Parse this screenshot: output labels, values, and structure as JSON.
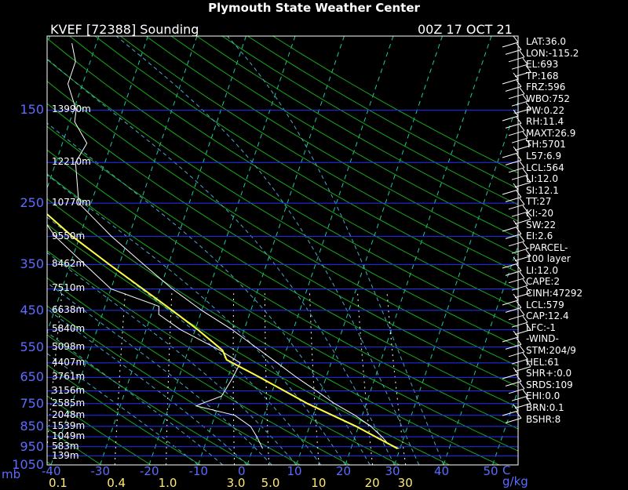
{
  "title": "Plymouth State Weather Center",
  "station_label": "KVEF [72388] Sounding",
  "time_label": "00Z 17 OCT 21",
  "mb_unit": "mb",
  "units_label": "C  g/kg",
  "colors": {
    "isobar": "#2030ff",
    "isotherm": "#1fc7a0",
    "dry_adiabat": "#18a818",
    "moist_adiabat": "#4aa8c8",
    "mixing_ratio": "#ffffff",
    "temperature": "#ffffff",
    "dewpoint": "#ffffff",
    "parcel": "#ffff40",
    "axis_label": "#5b6cff"
  },
  "chart_data": {
    "type": "line",
    "diagram": "skew-T log-P",
    "p_axis_ticks": [
      150,
      250,
      350,
      450,
      550,
      650,
      750,
      850,
      950,
      1050
    ],
    "p_range": [
      100,
      1050
    ],
    "t_axis_ticks": [
      -40,
      -30,
      -20,
      -10,
      0,
      10,
      20,
      30,
      40,
      50
    ],
    "mixing_ratio_ticks": [
      "0.1",
      "0.4",
      "1.0",
      "3.0",
      "5.0",
      "10",
      "20",
      "30"
    ],
    "heights": [
      {
        "p": 150,
        "label": "13990m"
      },
      {
        "p": 200,
        "label": "12210m"
      },
      {
        "p": 250,
        "label": "10770m"
      },
      {
        "p": 300,
        "label": "9550m"
      },
      {
        "p": 350,
        "label": "8462m"
      },
      {
        "p": 400,
        "label": "7510m"
      },
      {
        "p": 450,
        "label": "6638m"
      },
      {
        "p": 500,
        "label": "5840m"
      },
      {
        "p": 550,
        "label": "5098m"
      },
      {
        "p": 600,
        "label": "4407m"
      },
      {
        "p": 650,
        "label": "3761m"
      },
      {
        "p": 700,
        "label": "3156m"
      },
      {
        "p": 750,
        "label": "2585m"
      },
      {
        "p": 800,
        "label": "2048m"
      },
      {
        "p": 850,
        "label": "1539m"
      },
      {
        "p": 900,
        "label": "1049m"
      },
      {
        "p": 950,
        "label": "583m"
      },
      {
        "p": 1000,
        "label": "139m"
      }
    ],
    "series": [
      {
        "key": "temperature",
        "points": [
          [
            960,
            29.8
          ],
          [
            930,
            27.0
          ],
          [
            900,
            25.5
          ],
          [
            850,
            22.5
          ],
          [
            800,
            18.5
          ],
          [
            750,
            13.5
          ],
          [
            700,
            9.0
          ],
          [
            650,
            4.0
          ],
          [
            600,
            -1.0
          ],
          [
            550,
            -6.5
          ],
          [
            500,
            -12.5
          ],
          [
            450,
            -20.0
          ],
          [
            400,
            -27.5
          ],
          [
            350,
            -35.0
          ],
          [
            300,
            -43.5
          ],
          [
            250,
            -52.5
          ],
          [
            200,
            -56.0
          ],
          [
            180,
            -55.0
          ],
          [
            160,
            -59.0
          ],
          [
            150,
            -59.5
          ],
          [
            130,
            -63.0
          ],
          [
            115,
            -63.0
          ],
          [
            104,
            -65.0
          ]
        ]
      },
      {
        "key": "dewpoint",
        "points": [
          [
            960,
            2.0
          ],
          [
            900,
            0.0
          ],
          [
            850,
            -2.0
          ],
          [
            800,
            -6.0
          ],
          [
            760,
            -14.5
          ],
          [
            750,
            -13.5
          ],
          [
            720,
            -10.0
          ],
          [
            650,
            -9.0
          ],
          [
            600,
            -8.5
          ],
          [
            560,
            -13.5
          ],
          [
            500,
            -23.0
          ],
          [
            460,
            -28.5
          ],
          [
            440,
            -29.0
          ],
          [
            400,
            -40.0
          ],
          [
            350,
            -47.0
          ],
          [
            300,
            -55.0
          ],
          [
            250,
            -62.0
          ],
          [
            200,
            -72.0
          ],
          [
            180,
            -72.0
          ],
          [
            170,
            -75.0
          ],
          [
            150,
            -82.0
          ],
          [
            130,
            -84.0
          ],
          [
            110,
            -86.0
          ],
          [
            100,
            -87.5
          ]
        ]
      },
      {
        "key": "parcel",
        "points": [
          [
            960,
            29.5
          ],
          [
            850,
            19.5
          ],
          [
            750,
            8.0
          ],
          [
            650,
            -3.5
          ],
          [
            590,
            -11.5
          ],
          [
            560,
            -13.0
          ],
          [
            500,
            -19.5
          ],
          [
            450,
            -26.0
          ],
          [
            400,
            -33.5
          ],
          [
            350,
            -42.0
          ],
          [
            300,
            -51.5
          ],
          [
            250,
            -61.5
          ],
          [
            200,
            -72.0
          ],
          [
            150,
            -82.5
          ],
          [
            120,
            -89.0
          ],
          [
            104,
            -91.0
          ]
        ]
      }
    ]
  },
  "stats": [
    "LAT:36.0",
    "LON:-115.2",
    "EL:693",
    "TP:168",
    "FRZ:596",
    "WBO:752",
    "PW:0.22",
    "RH:11.4",
    "MAXT:26.9",
    "TH:5701",
    "L57:6.9",
    "LCL:564",
    "LI:12.0",
    "SI:12.1",
    "TT:27",
    "KI:-20",
    "SW:22",
    "EI:2.6",
    "-PARCEL-",
    "100 layer",
    "LI:12.0",
    "CAPE:2",
    "CINH:47292",
    "LCL:579",
    "CAP:12.4",
    "LFC:-1",
    "-WIND-",
    "STM:204/9",
    "HEL:61",
    "SHR+:0.0",
    "SRDS:109",
    "EHI:0.0",
    "BRN:0.1",
    "BSHR:8"
  ]
}
